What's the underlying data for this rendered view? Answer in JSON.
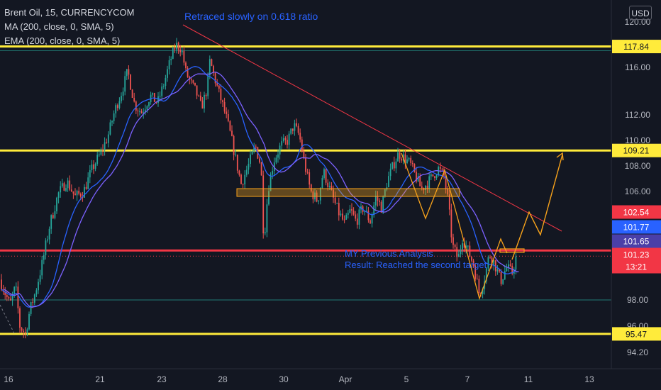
{
  "legend": {
    "symbol": "Brent Oil, 15, CURRENCYCOM",
    "ma": "MA (200, close, 0, SMA, 5)",
    "ema": "EMA (200, close, 0, SMA, 5)"
  },
  "currency_button": "USD",
  "colors": {
    "background": "#131722",
    "up": "#26a69a",
    "down": "#ef5350",
    "ma": "#2962ff",
    "ema": "#7b61ff",
    "levels": "#ffeb3b",
    "support": "#f23645",
    "projection": "#f7a21b",
    "annotation": "#2962ff"
  },
  "chart_data": {
    "type": "candlestick",
    "symbol": "Brent Oil",
    "timeframe": "15",
    "y_axis": {
      "ticks": [
        120.0,
        116.0,
        112.0,
        110.0,
        108.0,
        106.0,
        98.0,
        96.0,
        94.2
      ],
      "range": [
        93.3,
        121.2
      ]
    },
    "x_axis": {
      "ticks": [
        "16",
        "21",
        "23",
        "28",
        "30",
        "Apr",
        "5",
        "7",
        "11",
        "13"
      ]
    },
    "price_labels": [
      {
        "value": 117.84,
        "text": "117.84",
        "color": "#ffeb3b"
      },
      {
        "value": 109.21,
        "text": "109.21",
        "color": "#ffeb3b"
      },
      {
        "value": 102.54,
        "text": "102.54",
        "color": "#f23645"
      },
      {
        "value": 101.77,
        "text": "101.77",
        "color": "#2962ff"
      },
      {
        "value": 101.65,
        "text": "101.65",
        "color": "#4a3fa8"
      },
      {
        "value": 101.23,
        "text": "101.23",
        "timer": "13:21",
        "color": "#f23645"
      },
      {
        "value": 95.47,
        "text": "95.47",
        "color": "#ffeb3b"
      }
    ],
    "horizontal_levels": [
      {
        "value": 117.84,
        "color": "#ffeb3b"
      },
      {
        "value": 109.21,
        "color": "#ffeb3b"
      },
      {
        "value": 101.65,
        "color": "#f23645"
      },
      {
        "value": 95.47,
        "color": "#ffeb3b"
      },
      {
        "value": 98.0,
        "color": "#26a69a"
      }
    ],
    "annotations": [
      {
        "text": "Retraced slowly on 0.618 ratio"
      },
      {
        "text": "MY Previous Analysis"
      },
      {
        "text": "Result: Reached the second target"
      }
    ],
    "series": [
      {
        "name": "MA (200, close, 0, SMA, 5)",
        "color": "#2962ff"
      },
      {
        "name": "EMA (200, close, 0, SMA, 5)",
        "color": "#7b61ff"
      }
    ],
    "current_price": 101.23,
    "countdown": "13:21"
  }
}
